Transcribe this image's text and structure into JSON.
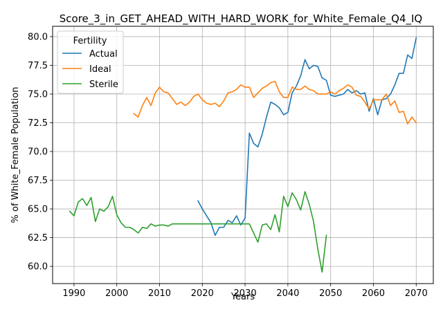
{
  "chart_data": {
    "type": "line",
    "title": "Score_3_in_GET_AHEAD_WITH_HARD_WORK_for_White_Female_Q4_IQ",
    "xlabel": "Years",
    "ylabel": "% of White_Female Population",
    "xlim": [
      1985,
      2074
    ],
    "ylim": [
      58.5,
      80.9
    ],
    "xticks": [
      1990,
      2000,
      2010,
      2020,
      2030,
      2040,
      2050,
      2060,
      2070
    ],
    "yticks": [
      60.0,
      62.5,
      65.0,
      67.5,
      70.0,
      72.5,
      75.0,
      77.5,
      80.0
    ],
    "ytick_labels": [
      "60.0",
      "62.5",
      "65.0",
      "67.5",
      "70.0",
      "72.5",
      "75.0",
      "77.5",
      "80.0"
    ],
    "grid": true,
    "legend": {
      "title": "Fertility",
      "position": "top-left"
    },
    "series": [
      {
        "name": "Actual",
        "color": "#1f77b4",
        "x": [
          2019,
          2020,
          2021,
          2022,
          2023,
          2024,
          2025,
          2026,
          2027,
          2028,
          2029,
          2030,
          2031,
          2032,
          2033,
          2034,
          2035,
          2036,
          2037,
          2038,
          2039,
          2040,
          2041,
          2042,
          2043,
          2044,
          2045,
          2046,
          2047,
          2048,
          2049,
          2050,
          2051,
          2052,
          2053,
          2054,
          2055,
          2056,
          2057,
          2058,
          2059,
          2060,
          2061,
          2062,
          2063,
          2064,
          2065,
          2066,
          2067,
          2068,
          2069,
          2070
        ],
        "y": [
          65.7,
          65.0,
          64.4,
          63.8,
          62.7,
          63.4,
          63.4,
          64.0,
          63.8,
          64.4,
          63.6,
          64.2,
          71.6,
          70.7,
          70.4,
          71.5,
          73.0,
          74.3,
          74.1,
          73.8,
          73.2,
          73.4,
          75.1,
          75.7,
          76.6,
          78.0,
          77.2,
          77.5,
          77.4,
          76.4,
          76.2,
          74.9,
          74.8,
          74.9,
          75.0,
          75.4,
          75.1,
          75.3,
          75.0,
          75.1,
          73.5,
          74.6,
          73.2,
          74.5,
          74.6,
          75.0,
          75.8,
          76.8,
          76.8,
          78.4,
          78.1,
          79.9
        ]
      },
      {
        "name": "Ideal",
        "color": "#ff7f0e",
        "x": [
          2004,
          2005,
          2006,
          2007,
          2008,
          2009,
          2010,
          2011,
          2012,
          2013,
          2014,
          2015,
          2016,
          2017,
          2018,
          2019,
          2020,
          2021,
          2022,
          2023,
          2024,
          2025,
          2026,
          2027,
          2028,
          2029,
          2030,
          2031,
          2032,
          2033,
          2034,
          2035,
          2036,
          2037,
          2038,
          2039,
          2040,
          2041,
          2042,
          2043,
          2044,
          2045,
          2046,
          2047,
          2048,
          2049,
          2050,
          2051,
          2052,
          2053,
          2054,
          2055,
          2056,
          2057,
          2058,
          2059,
          2060,
          2061,
          2062,
          2063,
          2064,
          2065,
          2066,
          2067,
          2068,
          2069,
          2070
        ],
        "y": [
          73.3,
          73.0,
          74.0,
          74.7,
          74.0,
          75.1,
          75.6,
          75.2,
          75.1,
          74.6,
          74.1,
          74.3,
          74.0,
          74.3,
          74.8,
          75.0,
          74.5,
          74.2,
          74.1,
          74.2,
          73.9,
          74.4,
          75.1,
          75.2,
          75.4,
          75.8,
          75.6,
          75.6,
          74.7,
          75.1,
          75.5,
          75.7,
          76.0,
          76.1,
          75.2,
          74.7,
          74.7,
          75.6,
          75.4,
          75.4,
          75.7,
          75.4,
          75.3,
          75.0,
          75.0,
          75.0,
          75.2,
          75.0,
          75.3,
          75.5,
          75.8,
          75.6,
          74.9,
          74.8,
          74.3,
          73.7,
          74.5,
          74.5,
          74.5,
          75.0,
          74.0,
          74.4,
          73.4,
          73.5,
          72.4,
          73.0,
          72.5
        ]
      },
      {
        "name": "Sterile",
        "color": "#2ca02c",
        "x": [
          1989,
          1990,
          1991,
          1992,
          1993,
          1994,
          1995,
          1996,
          1997,
          1998,
          1999,
          2000,
          2001,
          2002,
          2003,
          2004,
          2005,
          2006,
          2007,
          2008,
          2009,
          2010,
          2011,
          2012,
          2013,
          2014,
          2015,
          2016,
          2017,
          2018,
          2019,
          2020,
          2021,
          2022,
          2023,
          2024,
          2025,
          2026,
          2027,
          2028,
          2029,
          2030,
          2031,
          2032,
          2033,
          2034,
          2035,
          2036,
          2037,
          2038,
          2039,
          2040,
          2041,
          2042,
          2043,
          2044,
          2045,
          2046,
          2047,
          2048,
          2049
        ],
        "y": [
          64.8,
          64.4,
          65.6,
          65.9,
          65.3,
          66.0,
          63.9,
          65.0,
          64.8,
          65.2,
          66.1,
          64.5,
          63.8,
          63.4,
          63.4,
          63.2,
          62.9,
          63.4,
          63.3,
          63.7,
          63.5,
          63.6,
          63.6,
          63.5,
          63.7,
          63.7,
          63.7,
          63.7,
          63.7,
          63.7,
          63.7,
          63.7,
          63.7,
          63.7,
          63.7,
          63.7,
          63.7,
          63.7,
          63.7,
          63.7,
          63.7,
          63.7,
          63.7,
          62.9,
          62.1,
          63.6,
          63.7,
          63.2,
          64.5,
          63.0,
          66.1,
          65.2,
          66.4,
          65.8,
          64.9,
          66.5,
          65.4,
          63.9,
          61.5,
          59.5,
          62.7
        ]
      }
    ]
  }
}
